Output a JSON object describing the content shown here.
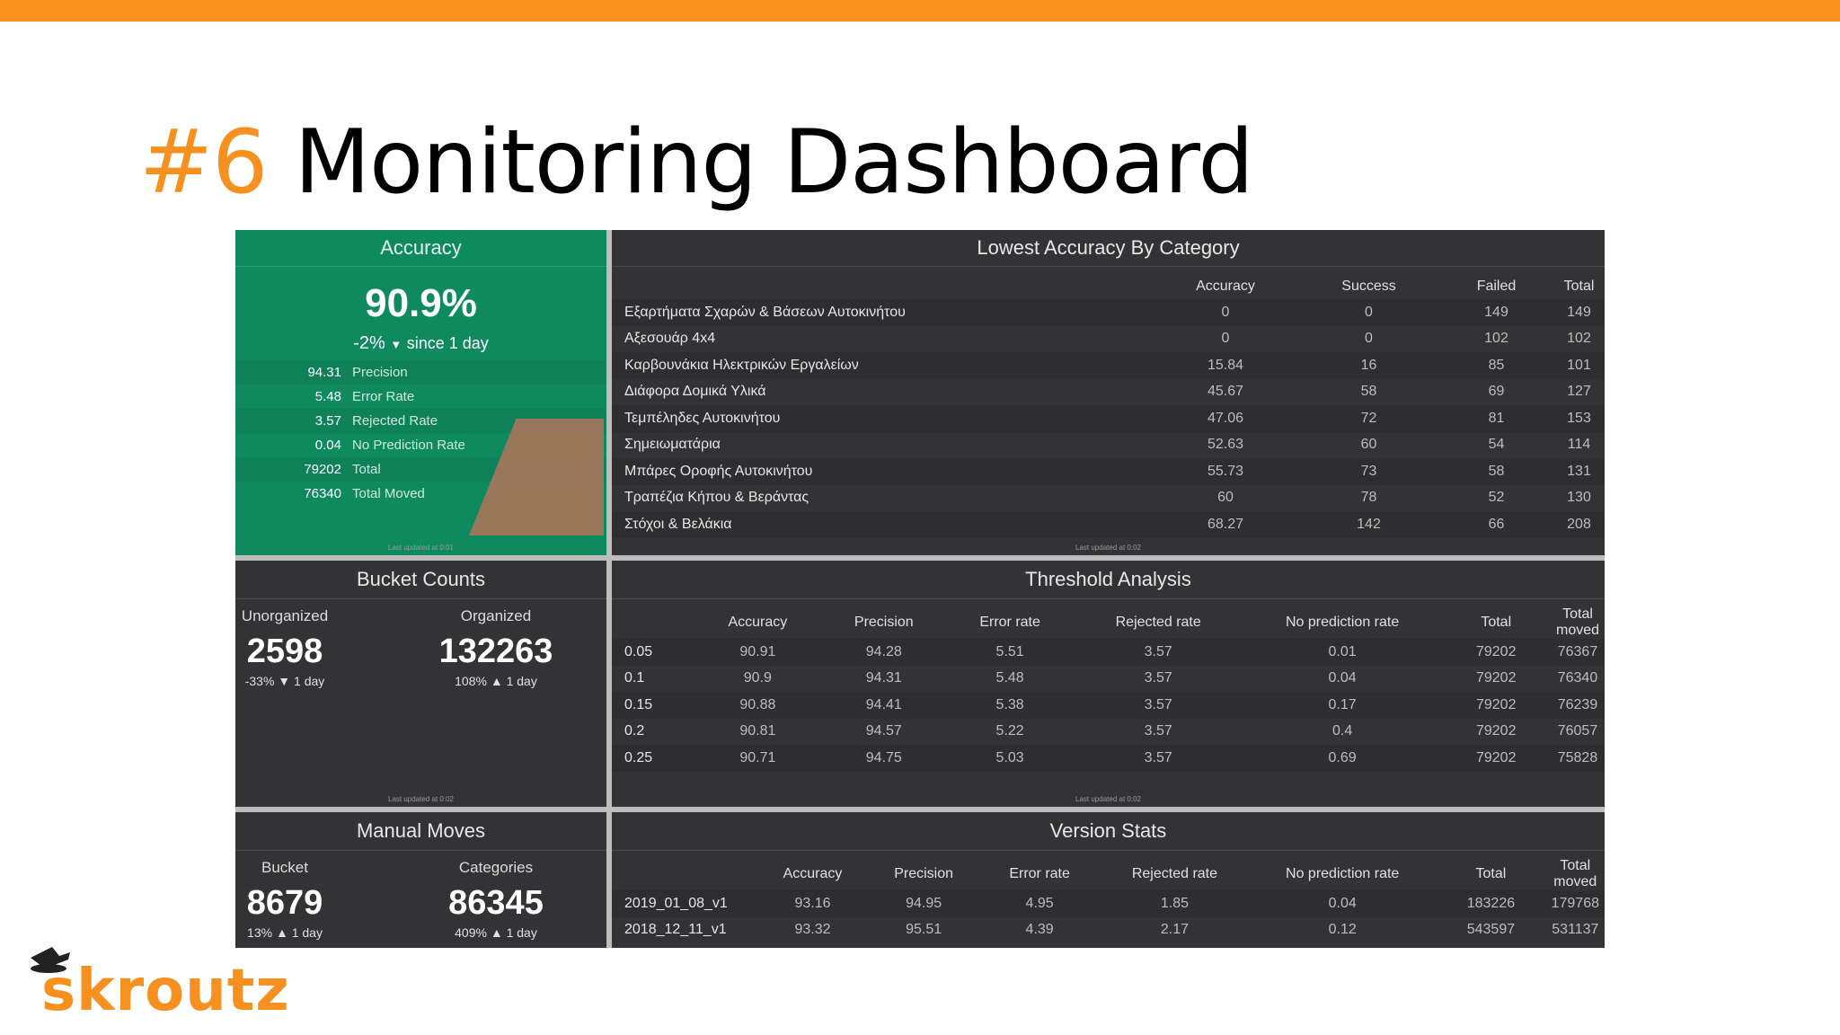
{
  "slide": {
    "number": "#6",
    "title": "Monitoring Dashboard"
  },
  "colors": {
    "accent": "#f7901e",
    "accuracy_panel": "#0f8a5f",
    "panel_bg": "#333336"
  },
  "accuracy": {
    "title": "Accuracy",
    "value": "90.9%",
    "change": "-2%",
    "since": "since 1 day",
    "metrics": [
      {
        "value": "94.31",
        "label": "Precision"
      },
      {
        "value": "5.48",
        "label": "Error Rate"
      },
      {
        "value": "3.57",
        "label": "Rejected Rate"
      },
      {
        "value": "0.04",
        "label": "No Prediction Rate"
      },
      {
        "value": "79202",
        "label": "Total"
      },
      {
        "value": "76340",
        "label": "Total Moved"
      }
    ],
    "updated": "Last updated at 0:01"
  },
  "lowest": {
    "title": "Lowest Accuracy By Category",
    "headers": [
      "",
      "Accuracy",
      "Success",
      "Failed",
      "Total"
    ],
    "rows": [
      [
        "Εξαρτήματα Σχαρών & Βάσεων Αυτοκινήτου",
        "0",
        "0",
        "149",
        "149"
      ],
      [
        "Αξεσουάρ 4x4",
        "0",
        "0",
        "102",
        "102"
      ],
      [
        "Καρβουνάκια Ηλεκτρικών Εργαλείων",
        "15.84",
        "16",
        "85",
        "101"
      ],
      [
        "Διάφορα Δομικά Υλικά",
        "45.67",
        "58",
        "69",
        "127"
      ],
      [
        "Τεμπέληδες Αυτοκινήτου",
        "47.06",
        "72",
        "81",
        "153"
      ],
      [
        "Σημειωματάρια",
        "52.63",
        "60",
        "54",
        "114"
      ],
      [
        "Μπάρες Οροφής Αυτοκινήτου",
        "55.73",
        "73",
        "58",
        "131"
      ],
      [
        "Τραπέζια Κήπου & Βεράντας",
        "60",
        "78",
        "52",
        "130"
      ],
      [
        "Στόχοι & Βελάκια",
        "68.27",
        "142",
        "66",
        "208"
      ]
    ],
    "updated": "Last updated at 0:02"
  },
  "bucket": {
    "title": "Bucket Counts",
    "unorganized": {
      "label": "Unorganized",
      "value": "2598",
      "change": "-33%",
      "period": "1 day"
    },
    "organized": {
      "label": "Organized",
      "value": "132263",
      "change": "108%",
      "period": "1 day"
    },
    "updated": "Last updated at 0:02"
  },
  "threshold": {
    "title": "Threshold Analysis",
    "headers": [
      "",
      "Accuracy",
      "Precision",
      "Error rate",
      "Rejected rate",
      "No prediction rate",
      "Total",
      "Total moved"
    ],
    "rows": [
      [
        "0.05",
        "90.91",
        "94.28",
        "5.51",
        "3.57",
        "0.01",
        "79202",
        "76367"
      ],
      [
        "0.1",
        "90.9",
        "94.31",
        "5.48",
        "3.57",
        "0.04",
        "79202",
        "76340"
      ],
      [
        "0.15",
        "90.88",
        "94.41",
        "5.38",
        "3.57",
        "0.17",
        "79202",
        "76239"
      ],
      [
        "0.2",
        "90.81",
        "94.57",
        "5.22",
        "3.57",
        "0.4",
        "79202",
        "76057"
      ],
      [
        "0.25",
        "90.71",
        "94.75",
        "5.03",
        "3.57",
        "0.69",
        "79202",
        "75828"
      ]
    ],
    "updated": "Last updated at 0:02"
  },
  "manual": {
    "title": "Manual Moves",
    "bucket": {
      "label": "Bucket",
      "value": "8679",
      "change": "13%",
      "period": "1 day"
    },
    "categories": {
      "label": "Categories",
      "value": "86345",
      "change": "409%",
      "period": "1 day"
    }
  },
  "version": {
    "title": "Version Stats",
    "headers": [
      "",
      "Accuracy",
      "Precision",
      "Error rate",
      "Rejected rate",
      "No prediction rate",
      "Total",
      "Total moved"
    ],
    "rows": [
      [
        "2019_01_08_v1",
        "93.16",
        "94.95",
        "4.95",
        "1.85",
        "0.04",
        "183226",
        "179768"
      ],
      [
        "2018_12_11_v1",
        "93.32",
        "95.51",
        "4.39",
        "2.17",
        "0.12",
        "543597",
        "531137"
      ]
    ]
  },
  "logo": {
    "text": "skroutz"
  }
}
